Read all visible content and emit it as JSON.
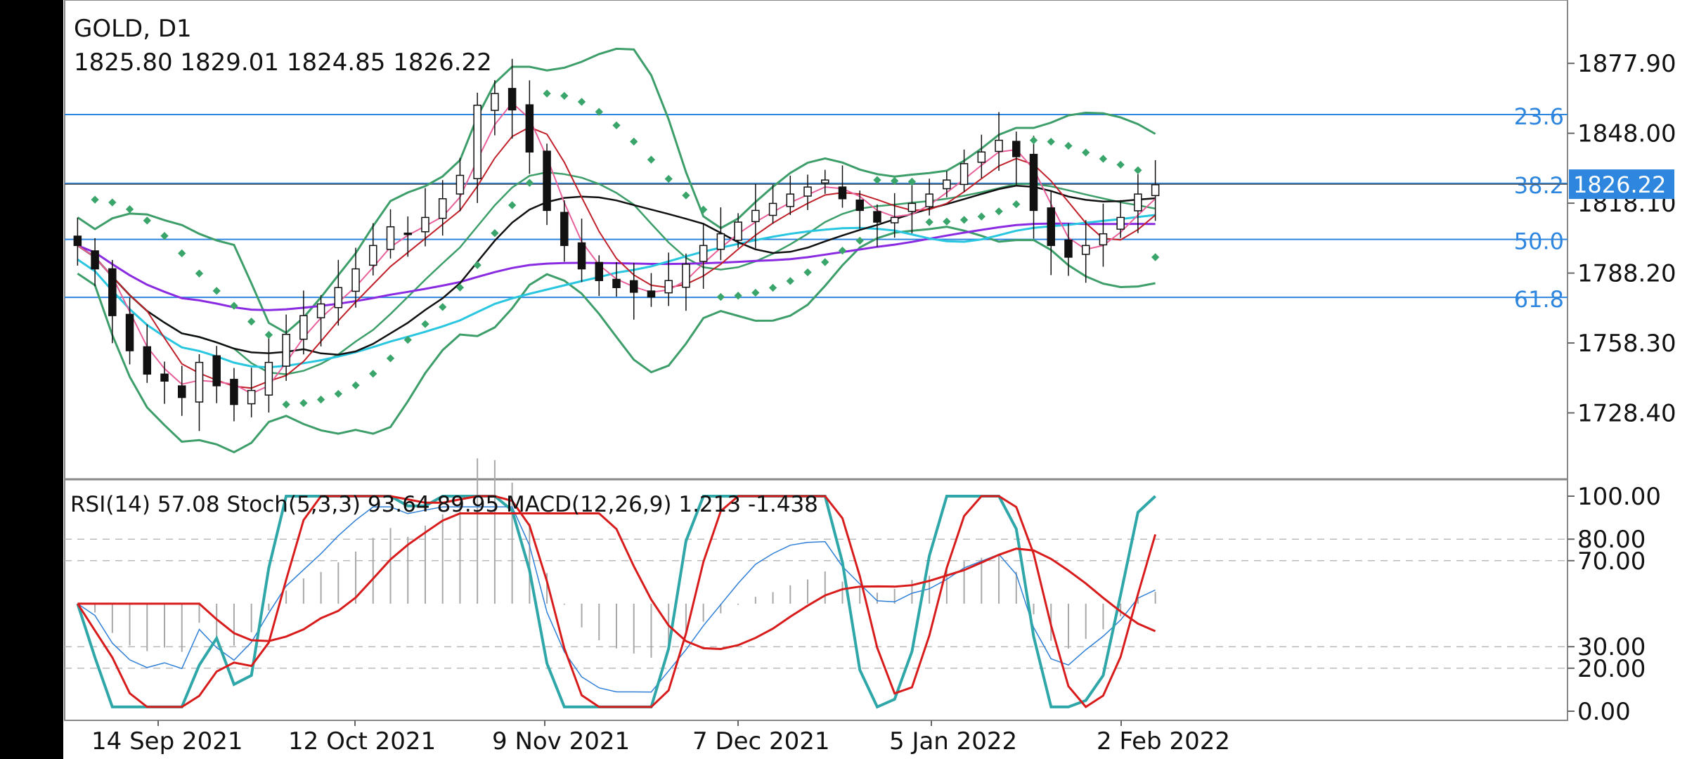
{
  "header": {
    "symbol_timeframe": "GOLD, D1",
    "ohlc": "1825.80 1829.01 1824.85 1826.22"
  },
  "indicator_header": "RSI(14) 57.08 Stoch(5,3,3) 93.64 89.95 MACD(12,26,9) 1.213 -1.438",
  "colors": {
    "bollinger": "#3d9e6a",
    "parabolic_sar": "#3aa56a",
    "ma_fast": "#e8609a",
    "ma_mid": "#c0202a",
    "ma_black": "#111111",
    "ma_purple": "#8a2be2",
    "ma_cyan": "#29c6e0",
    "fib_line": "#2e86de",
    "price_label_bg": "#2e86de",
    "stoch_k": "#2fa6a8",
    "stoch_d": "#d81c1c",
    "rsi": "#2f7fd6",
    "macd_hist": "#a8a8a8"
  },
  "chart_data": [
    {
      "type": "line",
      "panel": "price",
      "title": "GOLD, D1",
      "last_price": 1826.22,
      "y_ticks": [
        "1877.90",
        "1848.00",
        "1818.10",
        "1788.20",
        "1758.30",
        "1728.40"
      ],
      "y_tick_values": [
        1877.9,
        1848.0,
        1818.1,
        1788.2,
        1758.3,
        1728.4
      ],
      "ylim": [
        1700,
        1905
      ],
      "x_ticks": [
        "14 Sep 2021",
        "12 Oct 2021",
        "9 Nov 2021",
        "7 Dec 2021",
        "5 Jan 2022",
        "2 Feb 2022"
      ],
      "fibonacci_levels": [
        {
          "label": "23.6",
          "value": 1856
        },
        {
          "label": "38.2",
          "value": 1826.6
        },
        {
          "label": "50.0",
          "value": 1802.6
        },
        {
          "label": "61.8",
          "value": 1777.8
        }
      ],
      "indicators": [
        "Bollinger Bands",
        "Parabolic SAR",
        "Moving Averages"
      ],
      "grid": true,
      "close_path_approx": [
        1800,
        1790,
        1770,
        1755,
        1745,
        1742,
        1735,
        1750,
        1740,
        1732,
        1738,
        1750,
        1762,
        1770,
        1775,
        1782,
        1790,
        1800,
        1808,
        1805,
        1812,
        1820,
        1830,
        1860,
        1865,
        1858,
        1840,
        1815,
        1800,
        1790,
        1785,
        1782,
        1780,
        1778,
        1785,
        1792,
        1800,
        1805,
        1810,
        1815,
        1818,
        1822,
        1825,
        1828,
        1820,
        1815,
        1810,
        1812,
        1818,
        1822,
        1828,
        1835,
        1840,
        1845,
        1838,
        1815,
        1800,
        1795,
        1800,
        1805,
        1812,
        1822,
        1826
      ]
    },
    {
      "type": "line",
      "panel": "oscillators",
      "title": "RSI(14) 57.08 Stoch(5,3,3) 93.64 89.95 MACD(12,26,9) 1.213 -1.438",
      "y_ticks": [
        "100.00",
        "80.00",
        "70.00",
        "30.00",
        "20.00",
        "0.00"
      ],
      "y_tick_values": [
        100,
        80,
        70,
        30,
        20,
        0
      ],
      "ylim": [
        0,
        100
      ],
      "series": [
        {
          "name": "Stoch(5,3,3) %K",
          "last": 93.64
        },
        {
          "name": "Stoch(5,3,3) %D",
          "last": 89.95
        },
        {
          "name": "RSI(14)",
          "last": 57.08
        },
        {
          "name": "MACD(12,26,9)",
          "last": 1.213,
          "signal": -1.438
        }
      ],
      "grid": true
    }
  ]
}
